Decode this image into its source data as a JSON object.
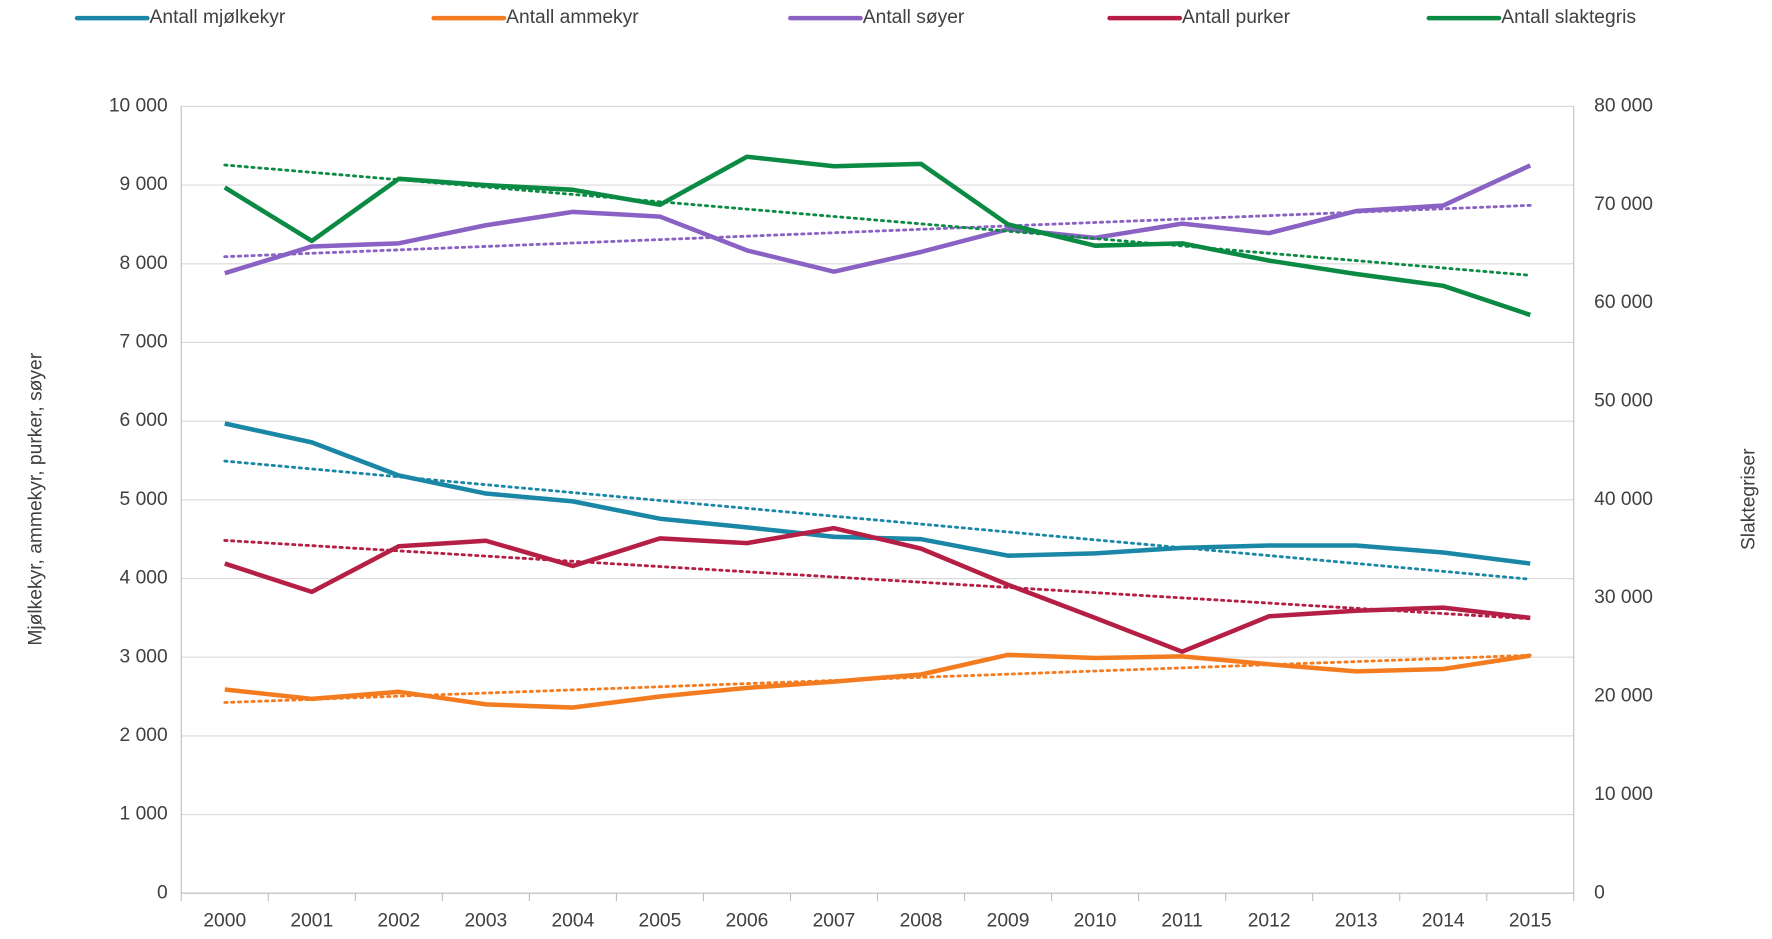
{
  "chart_data": {
    "type": "line",
    "categories": [
      "2000",
      "2001",
      "2002",
      "2003",
      "2004",
      "2005",
      "2006",
      "2007",
      "2008",
      "2009",
      "2010",
      "2011",
      "2012",
      "2013",
      "2014",
      "2015"
    ],
    "series": [
      {
        "name": "Antall mjølkekyr",
        "color": "#1a87a6",
        "axis": "y",
        "values": [
          5970,
          5730,
          5310,
          5080,
          4980,
          4760,
          4650,
          4530,
          4500,
          4290,
          4320,
          4390,
          4420,
          4420,
          4330,
          4190
        ]
      },
      {
        "name": "Antall ammekyr",
        "color": "#f47c20",
        "axis": "y",
        "values": [
          2590,
          2470,
          2560,
          2400,
          2360,
          2500,
          2610,
          2690,
          2780,
          3030,
          2990,
          3010,
          2910,
          2820,
          2850,
          3020
        ]
      },
      {
        "name": "Antall søyer",
        "color": "#8a62c4",
        "axis": "y",
        "values": [
          7880,
          8220,
          8260,
          8490,
          8660,
          8600,
          8170,
          7900,
          8150,
          8440,
          8330,
          8510,
          8390,
          8670,
          8740,
          9250
        ]
      },
      {
        "name": "Antall purker",
        "color": "#b51f45",
        "axis": "y",
        "values": [
          4190,
          3830,
          4410,
          4480,
          4160,
          4510,
          4450,
          4640,
          4380,
          3920,
          3500,
          3070,
          3520,
          3590,
          3630,
          3500
        ]
      },
      {
        "name": "Antall slaktegris",
        "color": "#0b8a43",
        "axis": "y2",
        "values": [
          71760,
          66320,
          72640,
          72000,
          71520,
          70000,
          74880,
          73920,
          74160,
          68000,
          65840,
          66080,
          64320,
          62960,
          61760,
          58800
        ]
      }
    ],
    "trendline": "linear",
    "ylabel": "Mjølkekyr, ammekyr, purker, søyer",
    "y2label": "Slaktegriser",
    "ylim": [
      0,
      10000
    ],
    "yticks": [
      0,
      {
        "value": 1000,
        "label": "1 000"
      },
      {
        "value": 2000,
        "label": "2 000"
      },
      {
        "value": 3000,
        "label": "3 000"
      },
      {
        "value": 4000,
        "label": "4 000"
      },
      {
        "value": 5000,
        "label": "5 000"
      },
      {
        "value": 6000,
        "label": "6 000"
      },
      {
        "value": 7000,
        "label": "7 000"
      },
      {
        "value": 8000,
        "label": "8 000"
      },
      {
        "value": 9000,
        "label": "9 000"
      },
      {
        "value": 10000,
        "label": "10 000"
      }
    ],
    "y2lim": [
      0,
      80000
    ],
    "y2ticks": [
      0,
      {
        "value": 10000,
        "label": "10 000"
      },
      {
        "value": 20000,
        "label": "20 000"
      },
      {
        "value": 30000,
        "label": "30 000"
      },
      {
        "value": 40000,
        "label": "40 000"
      },
      {
        "value": 50000,
        "label": "50 000"
      },
      {
        "value": 60000,
        "label": "60 000"
      },
      {
        "value": 70000,
        "label": "70 000"
      },
      {
        "value": 80000,
        "label": "80 000"
      }
    ],
    "grid": true,
    "legend": "top"
  }
}
